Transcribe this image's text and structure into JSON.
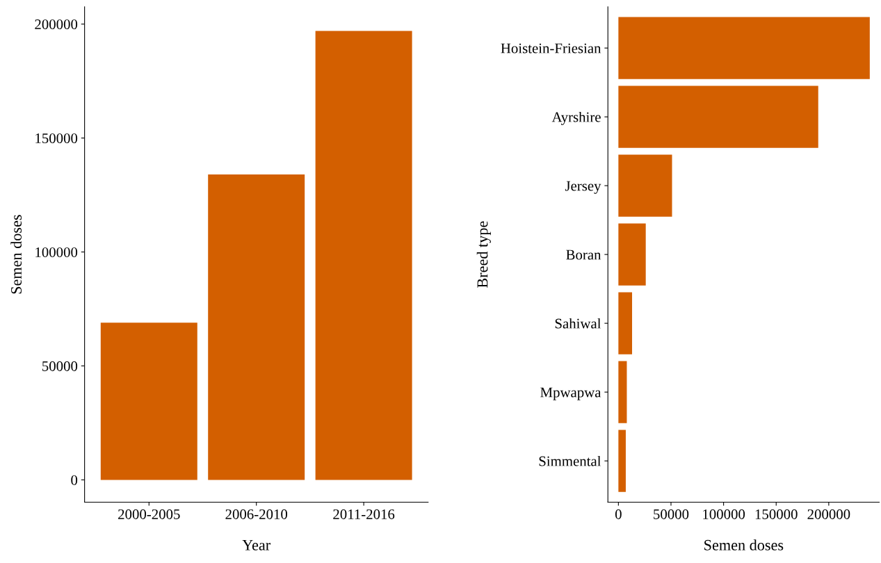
{
  "chart_data": [
    {
      "type": "bar",
      "categories": [
        "2000-2005",
        "2006-2010",
        "2011-2016"
      ],
      "values": [
        69000,
        134000,
        197000
      ],
      "color": "#d35f00",
      "xlabel": "Year",
      "ylabel": "Semen doses",
      "ylim": [
        -9800,
        207600
      ],
      "yticks": [
        0,
        50000,
        100000,
        150000,
        200000
      ],
      "grid": false
    },
    {
      "type": "bar",
      "orientation": "horizontal",
      "categories": [
        "Hoistein-Friesian",
        "Ayrshire",
        "Jersey",
        "Boran",
        "Sahiwal",
        "Mpwapwa",
        "Simmental"
      ],
      "values": [
        239000,
        190000,
        51000,
        26000,
        13000,
        8000,
        7000
      ],
      "color": "#d35f00",
      "xlabel": "Semen doses",
      "ylabel": "Breed type",
      "xlim": [
        -10000,
        248000
      ],
      "xticks": [
        0,
        50000,
        100000,
        150000,
        200000
      ],
      "grid": false
    }
  ]
}
